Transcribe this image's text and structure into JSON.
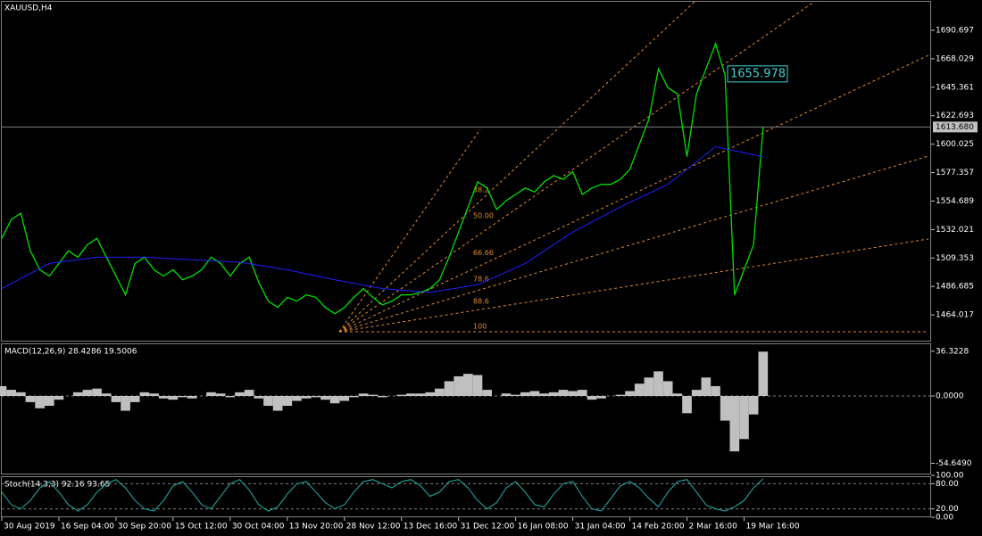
{
  "chart_data": [
    {
      "type": "line",
      "title": "XAUUSD,H4",
      "categories": [
        "30 Aug 2019",
        null,
        null,
        null,
        null,
        null,
        "16 Sep 04:00",
        null,
        null,
        null,
        null,
        null,
        "30 Sep 20:00",
        null,
        null,
        null,
        null,
        null,
        "15 Oct 12:00",
        null,
        null,
        null,
        null,
        null,
        "30 Oct 04:00",
        null,
        null,
        null,
        null,
        null,
        "13 Nov 20:00",
        null,
        null,
        null,
        null,
        null,
        "28 Nov 12:00",
        null,
        null,
        null,
        null,
        null,
        "13 Dec 16:00",
        null,
        null,
        null,
        null,
        null,
        "31 Dec 12:00",
        null,
        null,
        null,
        null,
        null,
        "16 Jan 08:00",
        null,
        null,
        null,
        null,
        null,
        "31 Jan 04:00",
        null,
        null,
        null,
        null,
        null,
        "14 Feb 20:00",
        null,
        null,
        null,
        null,
        null,
        "2 Mar 16:00",
        null,
        null,
        null,
        null,
        null,
        "19 Mar 16:00",
        null,
        null
      ],
      "series": [
        {
          "color": "#00e000",
          "values": [
            1525,
            1540,
            1545,
            1515,
            1500,
            1495,
            1505,
            1515,
            1510,
            1520,
            1525,
            1510,
            1495,
            1480,
            1505,
            1510,
            1500,
            1495,
            1500,
            1492,
            1495,
            1500,
            1510,
            1505,
            1495,
            1505,
            1510,
            1490,
            1475,
            1470,
            1478,
            1475,
            1480,
            1478,
            1470,
            1465,
            1470,
            1478,
            1485,
            1478,
            1472,
            1475,
            1480,
            1480,
            1482,
            1485,
            1492,
            1510,
            1530,
            1550,
            1570,
            1565,
            1548,
            1555,
            1560,
            1565,
            1562,
            1570,
            1575,
            1572,
            1578,
            1560,
            1565,
            1568,
            1568,
            1572,
            1580,
            1600,
            1620,
            1660,
            1645,
            1640,
            1590,
            1640,
            1660,
            1680,
            1655,
            1480,
            1500,
            1520,
            1613.68
          ]
        },
        {
          "color": "#2020ff",
          "x": [
            0,
            5,
            10,
            15,
            20,
            25,
            30,
            35,
            40,
            45,
            50,
            55,
            60,
            65,
            70,
            75,
            80
          ],
          "values": [
            1485,
            1505,
            1510,
            1510,
            1508,
            1506,
            1500,
            1492,
            1485,
            1482,
            1488,
            1505,
            1530,
            1550,
            1568,
            1598,
            1590
          ]
        }
      ],
      "ylim": [
        1443.5,
        1713.4
      ],
      "yticks": [
        1690.697,
        1668.029,
        1645.361,
        1622.693,
        1600.025,
        1577.357,
        1554.689,
        1532.021,
        1509.353,
        1486.685,
        1464.017
      ],
      "current_price": {
        "value": 1613.68,
        "label": "1613.680"
      },
      "annotation": 1655.978,
      "fib_levels": [
        38.2,
        {
          "value": 50,
          "label": "50.00"
        },
        66.66,
        78.6,
        88.6,
        100
      ]
    },
    {
      "type": "bar",
      "title": "MACD(12,26,9) 28.4286 19.5006",
      "color": "#c0c0c0",
      "values": [
        8,
        5,
        3,
        -5,
        -10,
        -8,
        -3,
        0,
        3,
        5,
        6,
        2,
        -5,
        -12,
        -5,
        3,
        2,
        -2,
        -3,
        -1,
        -2,
        0,
        3,
        2,
        -1,
        3,
        5,
        -2,
        -8,
        -12,
        -8,
        -4,
        -2,
        -1,
        -3,
        -6,
        -4,
        -1,
        2,
        1,
        -1,
        0,
        1,
        2,
        2,
        3,
        6,
        12,
        16,
        18,
        17,
        5,
        0,
        2,
        1,
        3,
        4,
        2,
        3,
        5,
        4,
        5,
        -3,
        -2,
        0,
        1,
        4,
        10,
        15,
        20,
        12,
        2,
        -14,
        5,
        15,
        8,
        -20,
        -45,
        -35,
        -15,
        36
      ],
      "ylim": [
        -63,
        42
      ],
      "yticks": [
        36.3228,
        {
          "value": 0,
          "label": "0.0000"
        },
        {
          "value": -54.649,
          "label": "-54.6490"
        }
      ]
    },
    {
      "type": "line",
      "title": "Stoch(14,3,3) 92.16 93.65",
      "color": "#20b2aa",
      "values": [
        60,
        30,
        20,
        40,
        70,
        85,
        60,
        30,
        15,
        30,
        60,
        80,
        90,
        70,
        40,
        20,
        15,
        40,
        75,
        85,
        60,
        30,
        20,
        50,
        80,
        90,
        65,
        30,
        15,
        25,
        55,
        80,
        85,
        60,
        35,
        20,
        30,
        60,
        85,
        90,
        80,
        70,
        85,
        90,
        75,
        50,
        60,
        85,
        90,
        70,
        40,
        20,
        35,
        70,
        85,
        60,
        30,
        25,
        55,
        80,
        85,
        50,
        20,
        15,
        45,
        75,
        85,
        70,
        45,
        25,
        60,
        85,
        90,
        60,
        30,
        20,
        15,
        25,
        40,
        70,
        92
      ],
      "ylim": [
        0,
        100
      ],
      "yticks": [
        {
          "value": 100,
          "label": "100.00"
        },
        {
          "value": 80,
          "label": "80.00"
        },
        {
          "value": 20,
          "label": "20.00"
        },
        {
          "value": 0,
          "label": "0.00"
        }
      ]
    }
  ]
}
